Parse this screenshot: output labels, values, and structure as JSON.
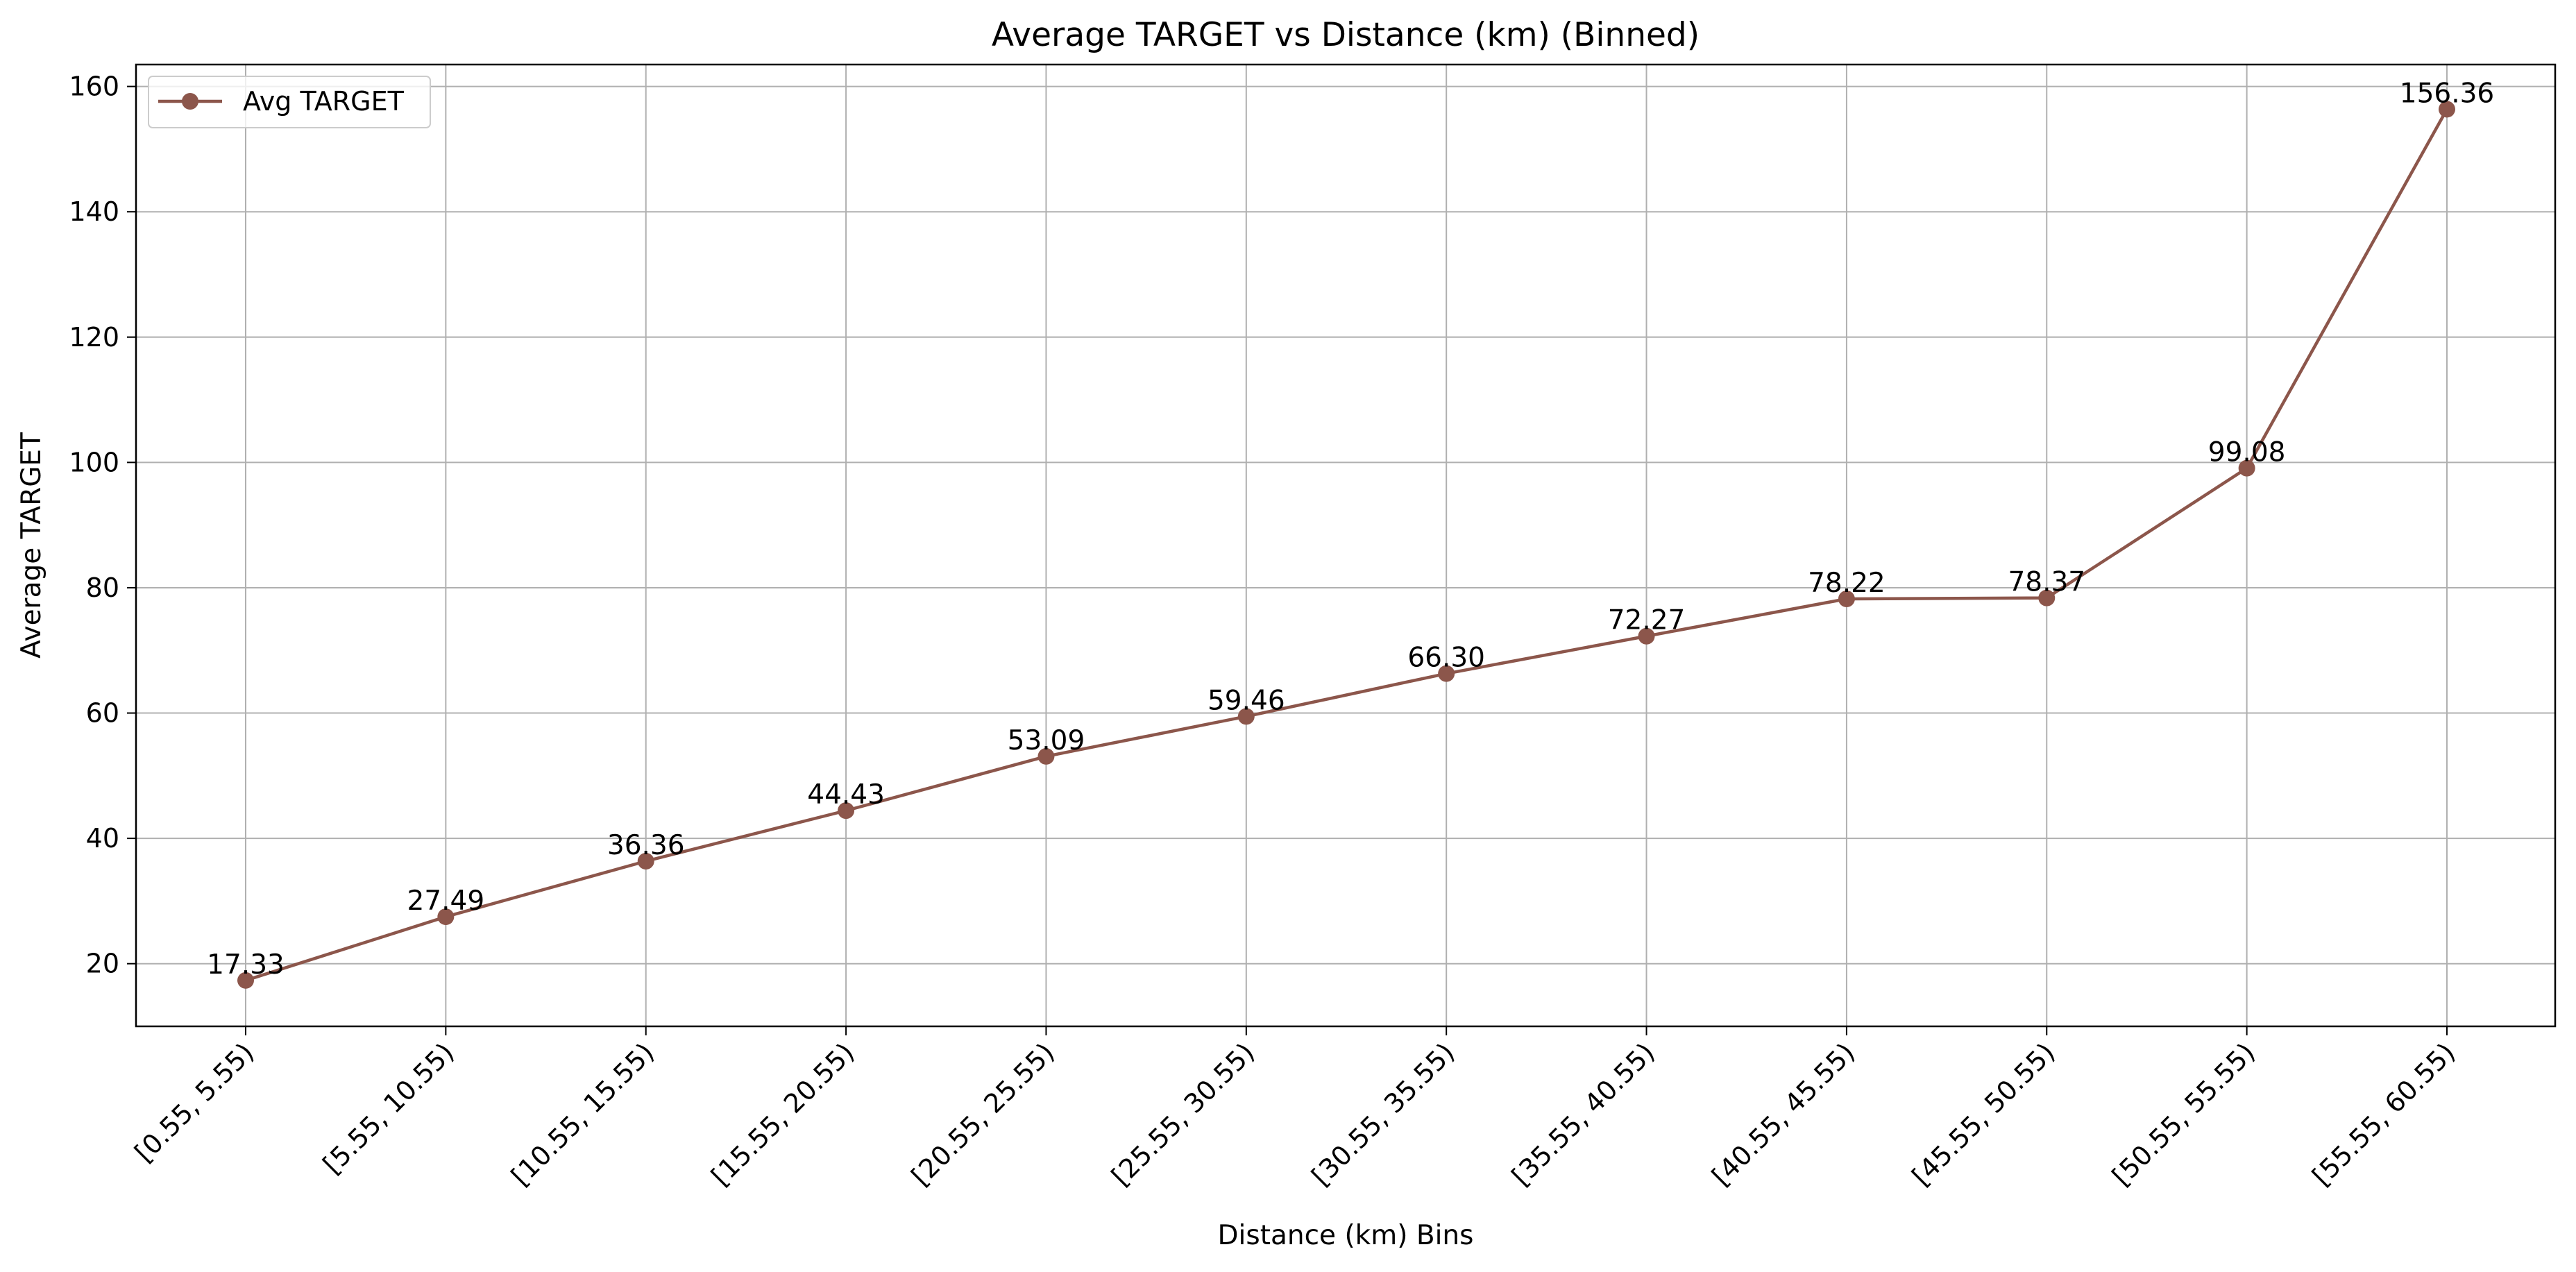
{
  "chart_data": {
    "type": "line",
    "title": "Average TARGET vs Distance (km) (Binned)",
    "xlabel": "Distance (km) Bins",
    "ylabel": "Average TARGET",
    "categories": [
      "[0.55, 5.55)",
      "[5.55, 10.55)",
      "[10.55, 15.55)",
      "[15.55, 20.55)",
      "[20.55, 25.55)",
      "[25.55, 30.55)",
      "[30.55, 35.55)",
      "[35.55, 40.55)",
      "[40.55, 45.55)",
      "[45.55, 50.55)",
      "[50.55, 55.55)",
      "[55.55, 60.55)"
    ],
    "series": [
      {
        "name": "Avg TARGET",
        "values": [
          17.33,
          27.49,
          36.36,
          44.43,
          53.09,
          59.46,
          66.3,
          72.27,
          78.22,
          78.37,
          99.08,
          156.36
        ],
        "data_labels": [
          "17.33",
          "27.49",
          "36.36",
          "44.43",
          "53.09",
          "59.46",
          "66.30",
          "72.27",
          "78.22",
          "78.37",
          "99.08",
          "156.36"
        ],
        "color": "#8c564b"
      }
    ],
    "ylim": [
      10,
      163.5
    ],
    "yticks": [
      20,
      40,
      60,
      80,
      100,
      120,
      140,
      160
    ],
    "grid": true,
    "legend_position": "top-left"
  }
}
